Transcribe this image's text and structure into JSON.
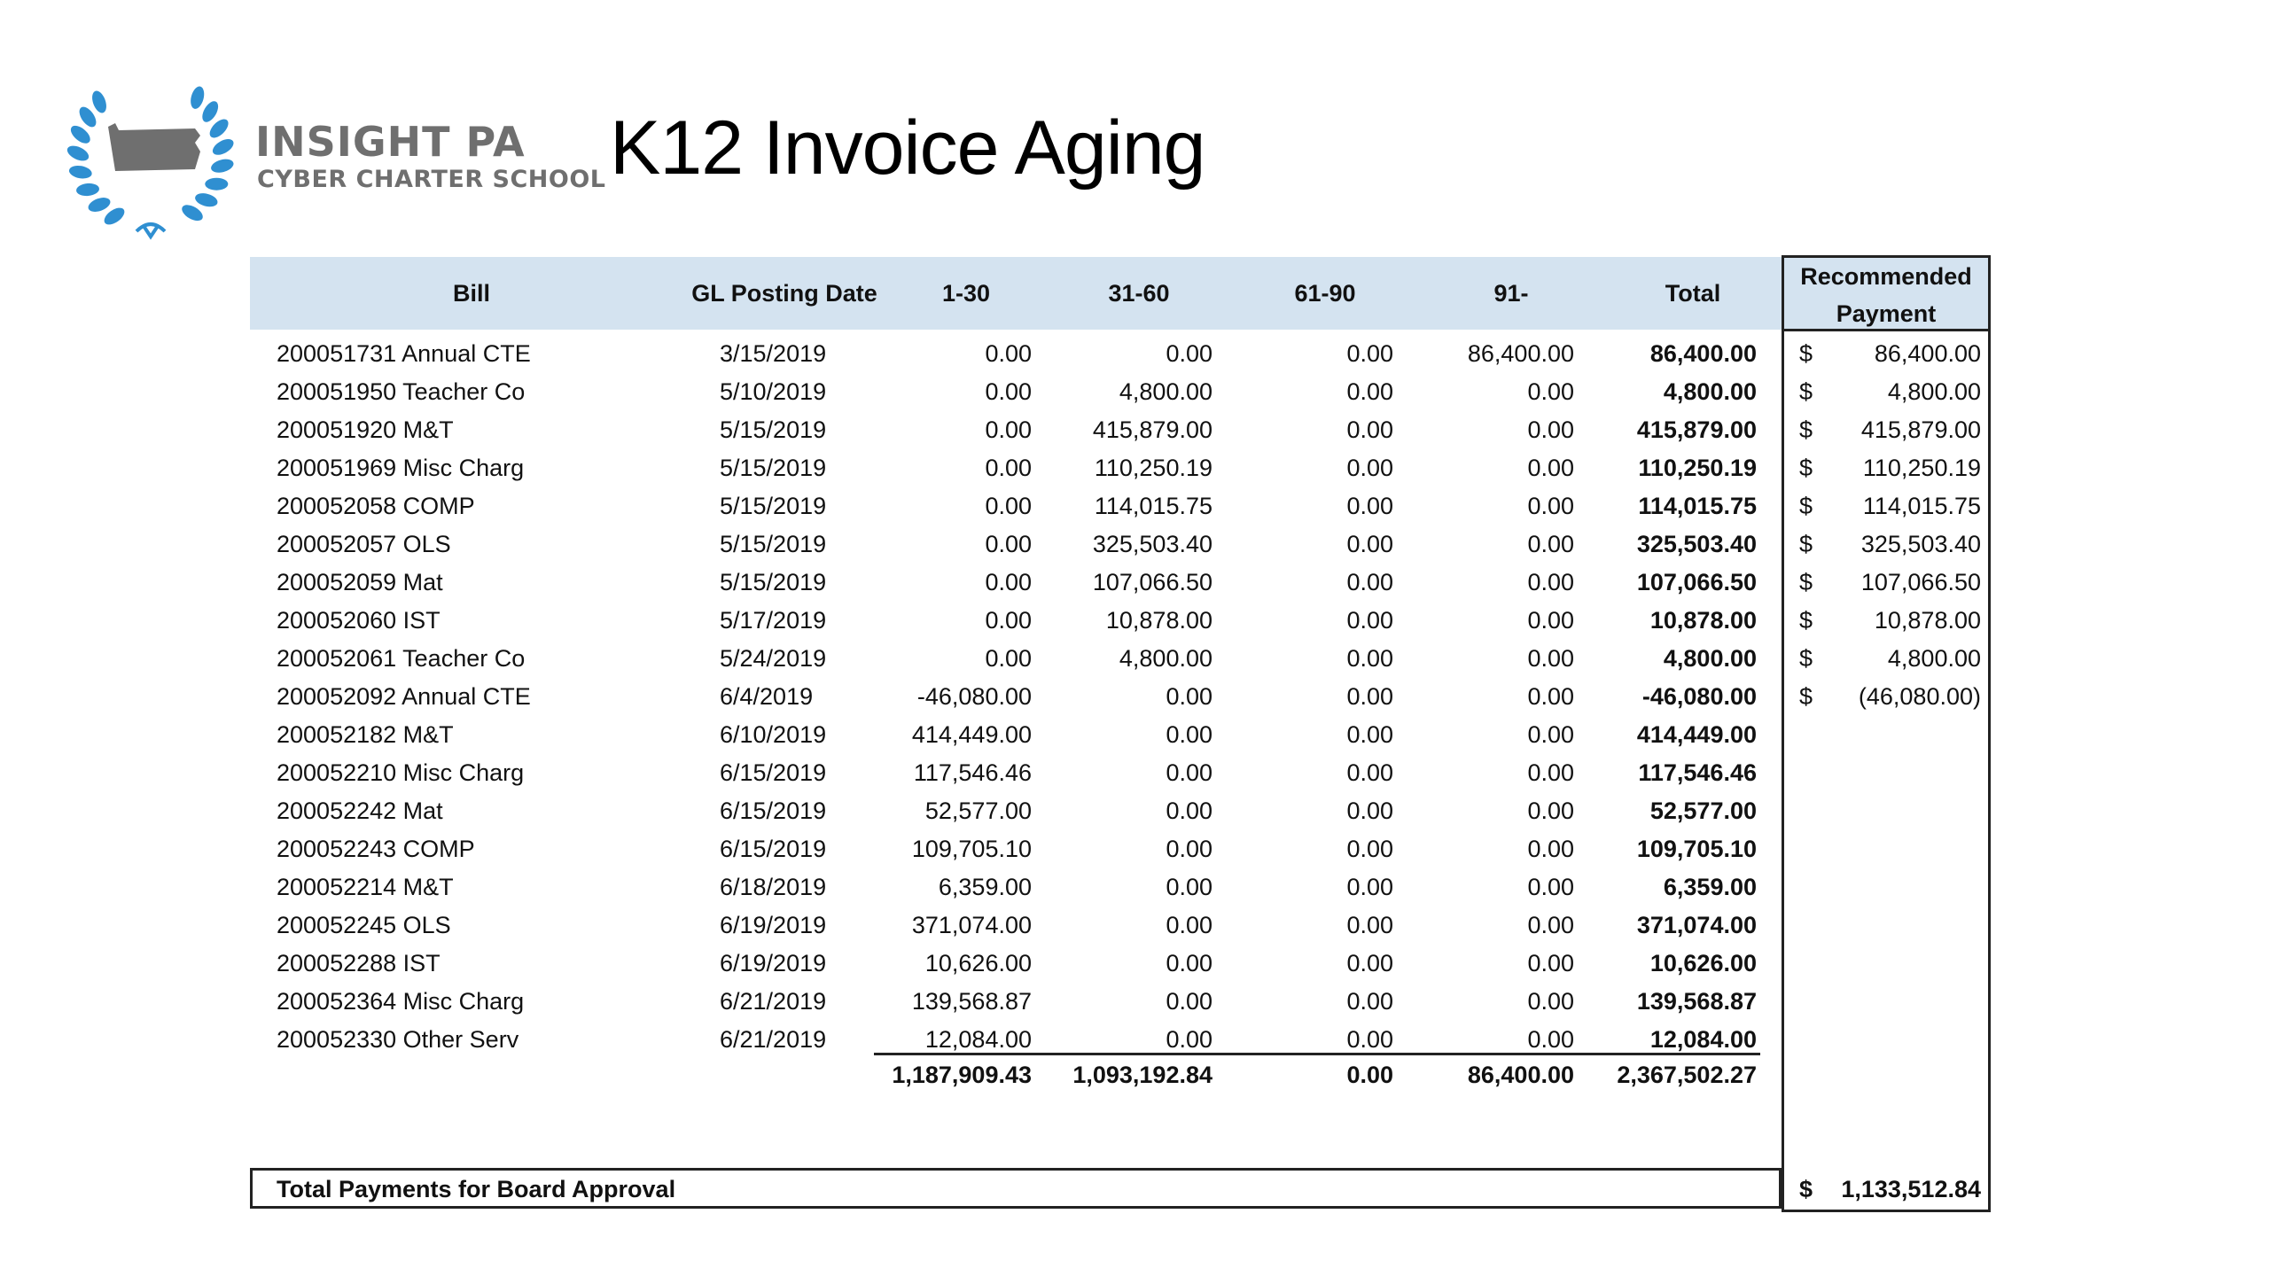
{
  "logo": {
    "name": "INSIGHT PA",
    "subtitle": "CYBER CHARTER SCHOOL",
    "leaf_color": "#2f8fd1",
    "state_color": "#6f6f6f"
  },
  "title": "K12 Invoice Aging",
  "header": {
    "bill": "Bill",
    "gl_posting_date": "GL Posting Date",
    "d1_30": "1-30",
    "d31_60": "31-60",
    "d61_90": "61-90",
    "d91": "91-",
    "total": "Total",
    "recommended_line1": "Recommended",
    "recommended_line2": "Payment",
    "header_color": "#d4e3f0"
  },
  "rows": [
    {
      "bill": "200051731 Annual CTE",
      "date": "3/15/2019",
      "d1_30": "0.00",
      "d31_60": "0.00",
      "d61_90": "0.00",
      "d91": "86,400.00",
      "total": "86,400.00",
      "rec_dollar": "$",
      "rec": "86,400.00"
    },
    {
      "bill": "200051950 Teacher Co",
      "date": "5/10/2019",
      "d1_30": "0.00",
      "d31_60": "4,800.00",
      "d61_90": "0.00",
      "d91": "0.00",
      "total": "4,800.00",
      "rec_dollar": "$",
      "rec": "4,800.00"
    },
    {
      "bill": "200051920 M&T",
      "date": "5/15/2019",
      "d1_30": "0.00",
      "d31_60": "415,879.00",
      "d61_90": "0.00",
      "d91": "0.00",
      "total": "415,879.00",
      "rec_dollar": "$",
      "rec": "415,879.00"
    },
    {
      "bill": "200051969 Misc Charg",
      "date": "5/15/2019",
      "d1_30": "0.00",
      "d31_60": "110,250.19",
      "d61_90": "0.00",
      "d91": "0.00",
      "total": "110,250.19",
      "rec_dollar": "$",
      "rec": "110,250.19"
    },
    {
      "bill": "200052058 COMP",
      "date": "5/15/2019",
      "d1_30": "0.00",
      "d31_60": "114,015.75",
      "d61_90": "0.00",
      "d91": "0.00",
      "total": "114,015.75",
      "rec_dollar": "$",
      "rec": "114,015.75"
    },
    {
      "bill": "200052057 OLS",
      "date": "5/15/2019",
      "d1_30": "0.00",
      "d31_60": "325,503.40",
      "d61_90": "0.00",
      "d91": "0.00",
      "total": "325,503.40",
      "rec_dollar": "$",
      "rec": "325,503.40"
    },
    {
      "bill": "200052059 Mat",
      "date": "5/15/2019",
      "d1_30": "0.00",
      "d31_60": "107,066.50",
      "d61_90": "0.00",
      "d91": "0.00",
      "total": "107,066.50",
      "rec_dollar": "$",
      "rec": "107,066.50"
    },
    {
      "bill": "200052060 IST",
      "date": "5/17/2019",
      "d1_30": "0.00",
      "d31_60": "10,878.00",
      "d61_90": "0.00",
      "d91": "0.00",
      "total": "10,878.00",
      "rec_dollar": "$",
      "rec": "10,878.00"
    },
    {
      "bill": "200052061 Teacher Co",
      "date": "5/24/2019",
      "d1_30": "0.00",
      "d31_60": "4,800.00",
      "d61_90": "0.00",
      "d91": "0.00",
      "total": "4,800.00",
      "rec_dollar": "$",
      "rec": "4,800.00"
    },
    {
      "bill": "200052092 Annual CTE",
      "date": "6/4/2019",
      "d1_30": "-46,080.00",
      "d31_60": "0.00",
      "d61_90": "0.00",
      "d91": "0.00",
      "total": "-46,080.00",
      "rec_dollar": "$",
      "rec": "(46,080.00)"
    },
    {
      "bill": "200052182 M&T",
      "date": "6/10/2019",
      "d1_30": "414,449.00",
      "d31_60": "0.00",
      "d61_90": "0.00",
      "d91": "0.00",
      "total": "414,449.00",
      "rec_dollar": "",
      "rec": ""
    },
    {
      "bill": "200052210 Misc Charg",
      "date": "6/15/2019",
      "d1_30": "117,546.46",
      "d31_60": "0.00",
      "d61_90": "0.00",
      "d91": "0.00",
      "total": "117,546.46",
      "rec_dollar": "",
      "rec": ""
    },
    {
      "bill": "200052242 Mat",
      "date": "6/15/2019",
      "d1_30": "52,577.00",
      "d31_60": "0.00",
      "d61_90": "0.00",
      "d91": "0.00",
      "total": "52,577.00",
      "rec_dollar": "",
      "rec": ""
    },
    {
      "bill": "200052243 COMP",
      "date": "6/15/2019",
      "d1_30": "109,705.10",
      "d31_60": "0.00",
      "d61_90": "0.00",
      "d91": "0.00",
      "total": "109,705.10",
      "rec_dollar": "",
      "rec": ""
    },
    {
      "bill": "200052214 M&T",
      "date": "6/18/2019",
      "d1_30": "6,359.00",
      "d31_60": "0.00",
      "d61_90": "0.00",
      "d91": "0.00",
      "total": "6,359.00",
      "rec_dollar": "",
      "rec": ""
    },
    {
      "bill": "200052245 OLS",
      "date": "6/19/2019",
      "d1_30": "371,074.00",
      "d31_60": "0.00",
      "d61_90": "0.00",
      "d91": "0.00",
      "total": "371,074.00",
      "rec_dollar": "",
      "rec": ""
    },
    {
      "bill": "200052288 IST",
      "date": "6/19/2019",
      "d1_30": "10,626.00",
      "d31_60": "0.00",
      "d61_90": "0.00",
      "d91": "0.00",
      "total": "10,626.00",
      "rec_dollar": "",
      "rec": ""
    },
    {
      "bill": "200052364 Misc Charg",
      "date": "6/21/2019",
      "d1_30": "139,568.87",
      "d31_60": "0.00",
      "d61_90": "0.00",
      "d91": "0.00",
      "total": "139,568.87",
      "rec_dollar": "",
      "rec": ""
    },
    {
      "bill": "200052330 Other Serv",
      "date": "6/21/2019",
      "d1_30": "12,084.00",
      "d31_60": "0.00",
      "d61_90": "0.00",
      "d91": "0.00",
      "total": "12,084.00",
      "rec_dollar": "",
      "rec": ""
    }
  ],
  "totals": {
    "d1_30": "1,187,909.43",
    "d31_60": "1,093,192.84",
    "d61_90": "0.00",
    "d91": "86,400.00",
    "total": "2,367,502.27"
  },
  "board": {
    "label": "Total Payments for Board Approval",
    "dollar": "$",
    "amount": "1,133,512.84"
  }
}
